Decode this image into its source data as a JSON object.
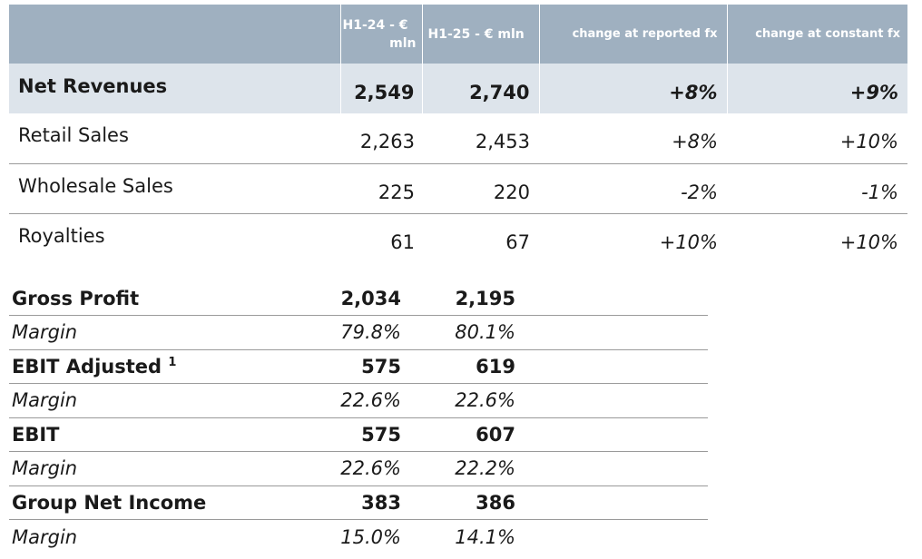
{
  "top_table": {
    "headers": {
      "col_h1_24_line1": "H1-24 - €",
      "col_h1_24_line2": "mln",
      "col_h1_25": "H1-25 - € mln",
      "col_change_reported": "change at reported fx",
      "col_change_constant": "change at constant fx"
    },
    "net_revenues": {
      "label": "Net Revenues",
      "h1_24": "2,549",
      "h1_25": "2,740",
      "change_reported": "+8%",
      "change_constant": "+9%"
    },
    "rows": [
      {
        "label": "Retail Sales",
        "h1_24": "2,263",
        "h1_25": "2,453",
        "change_reported": "+8%",
        "change_constant": "+10%"
      },
      {
        "label": "Wholesale Sales",
        "h1_24": "225",
        "h1_25": "220",
        "change_reported": "-2%",
        "change_constant": "-1%"
      },
      {
        "label": "Royalties",
        "h1_24": "61",
        "h1_25": "67",
        "change_reported": "+10%",
        "change_constant": "+10%"
      }
    ]
  },
  "bottom_table": {
    "rows": [
      {
        "label": "Gross Profit",
        "h1_24": "2,034",
        "h1_25": "2,195"
      },
      {
        "label": "Margin",
        "h1_24": "79.8%",
        "h1_25": "80.1%"
      },
      {
        "label": "EBIT Adjusted",
        "footnote": "1",
        "h1_24": "575",
        "h1_25": "619"
      },
      {
        "label": "Margin",
        "h1_24": "22.6%",
        "h1_25": "22.6%"
      },
      {
        "label": "EBIT",
        "h1_24": "575",
        "h1_25": "607"
      },
      {
        "label": "Margin",
        "h1_24": "22.6%",
        "h1_25": "22.2%"
      },
      {
        "label": "Group Net Income",
        "h1_24": "383",
        "h1_25": "386"
      },
      {
        "label": "Margin",
        "h1_24": "15.0%",
        "h1_25": "14.1%"
      }
    ]
  },
  "colors": {
    "header_bg": "#9fb0c0",
    "highlight_row_bg": "#dde4eb",
    "rule": "#9a9a9a"
  }
}
